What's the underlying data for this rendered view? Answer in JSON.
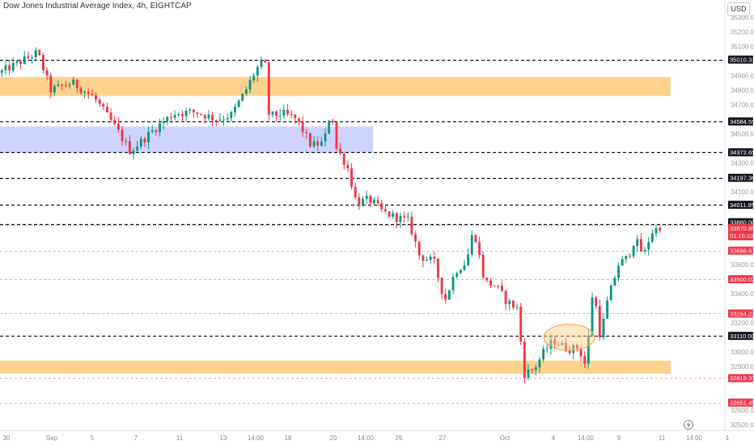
{
  "header": {
    "title": "Dow Jones Industrial Average Index, 4h, EIGHTCAP",
    "currency": "USD"
  },
  "colors": {
    "up": "#089981",
    "down": "#f23645",
    "zone_orange": "#ffcc80",
    "zone_blue": "#c5cbff",
    "label_red": "#f23645",
    "label_dark": "#131722"
  },
  "chart_data": {
    "type": "candlestick",
    "title": "Dow Jones Industrial Average Index, 4h, EIGHTCAP",
    "y_axis": {
      "ticks": [
        35300,
        35200,
        35100,
        34900,
        34800,
        34700,
        34500,
        34300,
        34100,
        33600,
        33400,
        33200,
        33000,
        32900,
        32600,
        32500
      ],
      "tick_labels": [
        "35300.00",
        "35200.00",
        "35100.00",
        "34900.00",
        "34800.00",
        "34700.00",
        "34500.00",
        "34300.00",
        "34100.00",
        "33600.00",
        "33400.00",
        "33200.00",
        "33000.00",
        "32900.00",
        "32600.00",
        "32500.00"
      ],
      "range": [
        32460,
        35420
      ]
    },
    "x_axis": {
      "tick_labels": [
        "30",
        "Sep",
        "5",
        "7",
        "11",
        "13",
        "14:00",
        "18",
        "20",
        "14:00",
        "25",
        "27",
        "Oct",
        "4",
        "14:00",
        "9",
        "11",
        "14:00",
        "1"
      ]
    },
    "price_levels": [
      {
        "value": 35010.33,
        "label": "35010.33",
        "style": "black-dashed"
      },
      {
        "value": 34584.55,
        "label": "34584.55",
        "style": "black-dashed"
      },
      {
        "value": 34372.65,
        "label": "34372.65",
        "style": "black-dashed"
      },
      {
        "value": 34197.36,
        "label": "34197.36",
        "style": "black-dashed"
      },
      {
        "value": 34011.95,
        "label": "34011.95",
        "style": "black-dashed"
      },
      {
        "value": 33880.0,
        "label": "33880.00",
        "style": "black-dashed"
      },
      {
        "value": 33696.61,
        "label": "33696.61",
        "style": "red-dashed"
      },
      {
        "value": 33500.02,
        "label": "33500.02",
        "style": "red-dashed"
      },
      {
        "value": 33264.22,
        "label": "33264.22",
        "style": "red-dashed"
      },
      {
        "value": 33110.0,
        "label": "33110.00",
        "style": "black-dashed"
      },
      {
        "value": 32819.37,
        "label": "32819.37",
        "style": "red-dashed"
      },
      {
        "value": 32651.45,
        "label": "32651.45",
        "style": "red-dashed"
      }
    ],
    "last_price": {
      "value": 33870.8,
      "label": "33870.80",
      "countdown": "01:16:13"
    },
    "zones": [
      {
        "color": "orange",
        "x_from": 0.0,
        "x_to": 0.927,
        "y_from": 34890,
        "y_to": 34760
      },
      {
        "color": "blue",
        "x_from": 0.0,
        "x_to": 0.516,
        "y_from": 34550,
        "y_to": 34370
      },
      {
        "color": "orange",
        "x_from": 0.0,
        "x_to": 0.927,
        "y_from": 32940,
        "y_to": 32850
      }
    ],
    "highlight_ellipse": {
      "x_from": 0.752,
      "x_to": 0.822,
      "y_from": 33190,
      "y_to": 33010
    },
    "anchors": [
      [
        0.0,
        34920
      ],
      [
        0.03,
        35000
      ],
      [
        0.052,
        35060
      ],
      [
        0.07,
        34800
      ],
      [
        0.1,
        34850
      ],
      [
        0.13,
        34750
      ],
      [
        0.16,
        34540
      ],
      [
        0.18,
        34380
      ],
      [
        0.2,
        34470
      ],
      [
        0.22,
        34560
      ],
      [
        0.24,
        34640
      ],
      [
        0.27,
        34650
      ],
      [
        0.3,
        34600
      ],
      [
        0.32,
        34630
      ],
      [
        0.34,
        34800
      ],
      [
        0.355,
        34950
      ],
      [
        0.366,
        35000
      ],
      [
        0.372,
        34620
      ],
      [
        0.39,
        34640
      ],
      [
        0.41,
        34600
      ],
      [
        0.43,
        34420
      ],
      [
        0.448,
        34440
      ],
      [
        0.458,
        34680
      ],
      [
        0.465,
        34400
      ],
      [
        0.48,
        34280
      ],
      [
        0.493,
        34020
      ],
      [
        0.51,
        34050
      ],
      [
        0.53,
        33960
      ],
      [
        0.55,
        33920
      ],
      [
        0.565,
        33900
      ],
      [
        0.58,
        33660
      ],
      [
        0.6,
        33620
      ],
      [
        0.615,
        33350
      ],
      [
        0.63,
        33560
      ],
      [
        0.645,
        33620
      ],
      [
        0.655,
        33850
      ],
      [
        0.67,
        33480
      ],
      [
        0.685,
        33460
      ],
      [
        0.7,
        33350
      ],
      [
        0.715,
        33300
      ],
      [
        0.725,
        32850
      ],
      [
        0.738,
        32880
      ],
      [
        0.752,
        33000
      ],
      [
        0.765,
        33080
      ],
      [
        0.785,
        33020
      ],
      [
        0.8,
        33030
      ],
      [
        0.81,
        32900
      ],
      [
        0.82,
        33450
      ],
      [
        0.83,
        33100
      ],
      [
        0.84,
        33350
      ],
      [
        0.855,
        33600
      ],
      [
        0.868,
        33650
      ],
      [
        0.878,
        33780
      ],
      [
        0.89,
        33660
      ],
      [
        0.9,
        33820
      ],
      [
        0.915,
        33870
      ]
    ]
  }
}
